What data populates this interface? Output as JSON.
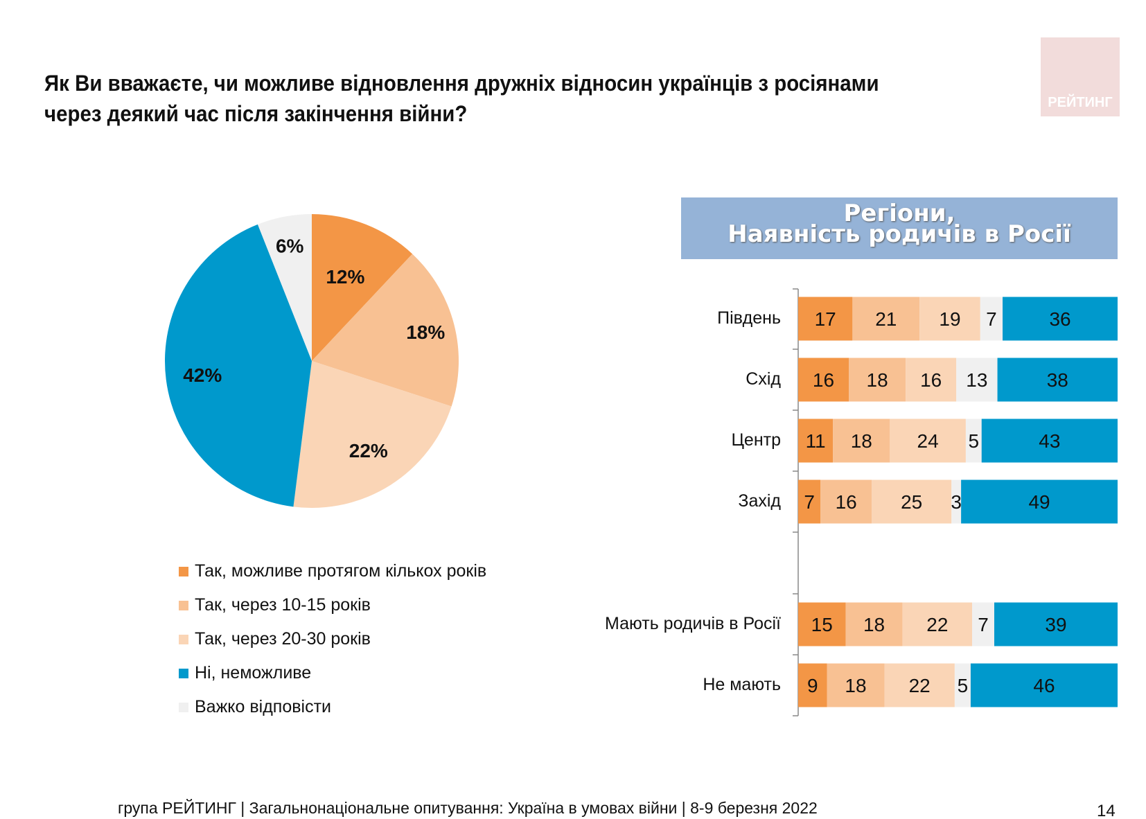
{
  "title": "Як Ви вважаєте, чи можливе відновлення дружніх відносин українців з росіянами через деякий час після закінчення війни?",
  "logo_text": "РЕЙТИНГ",
  "footer": "група РЕЙТИНГ | Загальнонаціональне опитування: Україна в умовах війни | 8-9 березня 2022",
  "page_number": "14",
  "chart_data": [
    {
      "type": "pie",
      "title": "",
      "unit": "%",
      "categories": [
        "Так, можливе протягом кількох років",
        "Так, через 10-15 років",
        "Так, через 20-30 років",
        "Ні, неможливе",
        "Важко відповісти"
      ],
      "values": [
        12,
        18,
        22,
        42,
        6
      ],
      "labels": [
        "12%",
        "18%",
        "22%",
        "42%",
        "6%"
      ],
      "colors": [
        "#F39646",
        "#F8C193",
        "#FAD5B6",
        "#0099CC",
        "#F0F0F0"
      ],
      "legend": "bottom"
    },
    {
      "type": "bar",
      "stacked": true,
      "orientation": "horizontal",
      "title_line1": "Регіони,",
      "title_line2": "Наявність родичів в Росії",
      "categories": [
        "Південь",
        "Схід",
        "Центр",
        "Захід",
        "Мають родичів в Росії",
        "Не мають"
      ],
      "series": [
        {
          "values": [
            17,
            16,
            11,
            7,
            15,
            9
          ],
          "color": "#F39646"
        },
        {
          "values": [
            21,
            18,
            18,
            16,
            18,
            18
          ],
          "color": "#F8C193"
        },
        {
          "values": [
            19,
            16,
            24,
            25,
            22,
            22
          ],
          "color": "#FAD5B6"
        },
        {
          "values": [
            7,
            13,
            5,
            3,
            7,
            5
          ],
          "color": "#F0F0F0"
        },
        {
          "values": [
            36,
            38,
            43,
            49,
            39,
            46
          ],
          "color": "#0099CC"
        }
      ]
    }
  ]
}
